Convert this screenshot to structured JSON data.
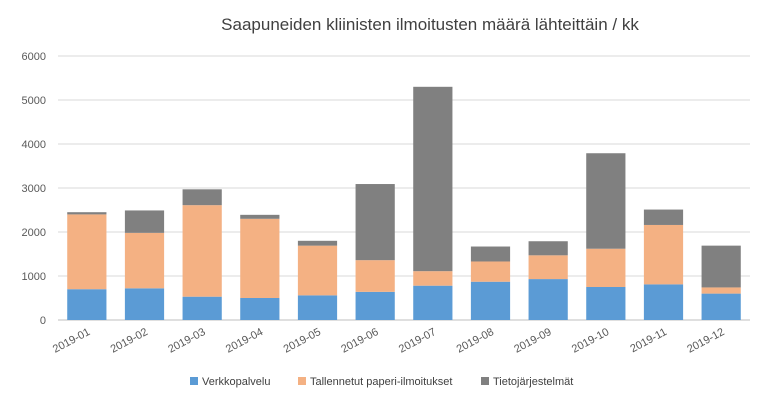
{
  "chart_data": {
    "type": "bar",
    "stacked": true,
    "title": "Saapuneiden kliinisten ilmoitusten määrä lähteittäin / kk",
    "xlabel": "",
    "ylabel": "",
    "ylim": [
      0,
      6000
    ],
    "yticks": [
      0,
      1000,
      2000,
      3000,
      4000,
      5000,
      6000
    ],
    "grid": true,
    "legend_position": "bottom",
    "categories": [
      "2019-01",
      "2019-02",
      "2019-03",
      "2019-04",
      "2019-05",
      "2019-06",
      "2019-07",
      "2019-08",
      "2019-09",
      "2019-10",
      "2019-11",
      "2019-12"
    ],
    "series": [
      {
        "name": "Verkkopalvelu",
        "color": "#5B9BD5",
        "values": [
          700,
          720,
          530,
          500,
          560,
          640,
          780,
          870,
          930,
          750,
          810,
          600
        ]
      },
      {
        "name": "Tallennetut paperi-ilmoitukset",
        "color": "#F4B183",
        "values": [
          1700,
          1260,
          2080,
          1800,
          1130,
          720,
          330,
          460,
          540,
          870,
          1350,
          140
        ]
      },
      {
        "name": "Tietojärjestelmät",
        "color": "#808080",
        "values": [
          50,
          510,
          360,
          90,
          110,
          1730,
          4190,
          340,
          320,
          2170,
          350,
          950
        ]
      }
    ]
  }
}
